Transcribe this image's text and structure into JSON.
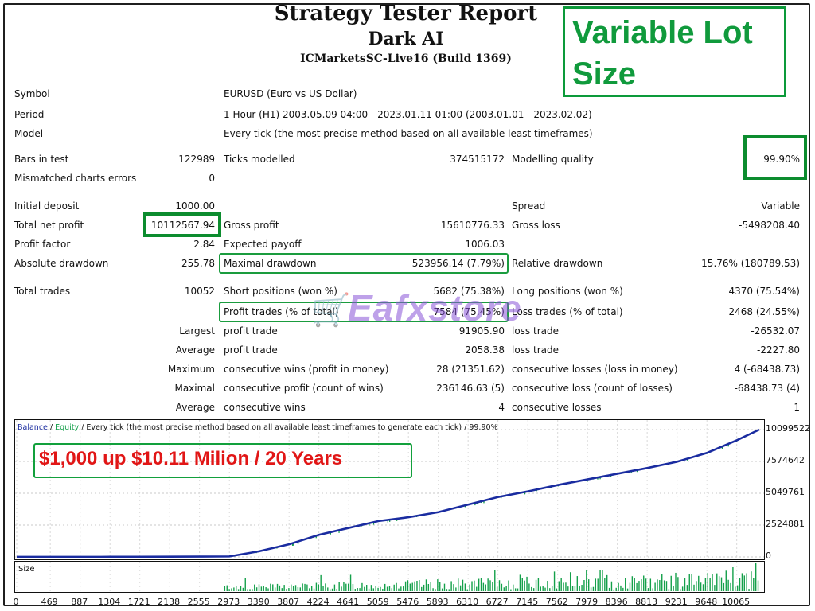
{
  "header": {
    "title": "Strategy Tester Report",
    "subtitle": "Dark AI",
    "server": "ICMarketsSC-Live16 (Build 1369)"
  },
  "badges": {
    "variable_lot": "Variable Lot Size",
    "growth": "$1,000 up $10.11 Milion / 20 Years"
  },
  "watermark": {
    "text": "Eafxstore"
  },
  "report": {
    "symbol_label": "Symbol",
    "symbol_value": "EURUSD (Euro vs US Dollar)",
    "period_label": "Period",
    "period_value": "1 Hour (H1) 2003.05.09 04:00 - 2023.01.11 01:00 (2003.01.01 - 2023.02.02)",
    "model_label": "Model",
    "model_value": "Every tick (the most precise method based on all available least timeframes)",
    "bars_label": "Bars in test",
    "bars_value": "122989",
    "ticks_label": "Ticks modelled",
    "ticks_value": "374515172",
    "quality_label": "Modelling quality",
    "quality_value": "99.90%",
    "mismatch_label": "Mismatched charts errors",
    "mismatch_value": "0",
    "deposit_label": "Initial deposit",
    "deposit_value": "1000.00",
    "spread_label": "Spread",
    "spread_value": "Variable",
    "net_label": "Total net profit",
    "net_value": "10112567.94",
    "gross_profit_label": "Gross profit",
    "gross_profit_value": "15610776.33",
    "gross_loss_label": "Gross loss",
    "gross_loss_value": "-5498208.40",
    "pf_label": "Profit factor",
    "pf_value": "2.84",
    "payoff_label": "Expected payoff",
    "payoff_value": "1006.03",
    "abs_dd_label": "Absolute drawdown",
    "abs_dd_value": "255.78",
    "max_dd_label": "Maximal drawdown",
    "max_dd_value": "523956.14 (7.79%)",
    "rel_dd_label": "Relative drawdown",
    "rel_dd_value": "15.76% (180789.53)",
    "trades_label": "Total trades",
    "trades_value": "10052",
    "short_label": "Short positions (won %)",
    "short_value": "5682 (75.38%)",
    "long_label": "Long positions (won %)",
    "long_value": "4370 (75.54%)",
    "profit_trades_label": "Profit trades (% of total)",
    "profit_trades_value": "7584 (75.45%)",
    "loss_trades_label": "Loss trades (% of total)",
    "loss_trades_value": "2468 (24.55%)",
    "largest_label": "Largest",
    "largest_pt_label": "profit trade",
    "largest_pt_value": "91905.90",
    "largest_lt_label": "loss trade",
    "largest_lt_value": "-26532.07",
    "average_label": "Average",
    "average_pt_label": "profit trade",
    "average_pt_value": "2058.38",
    "average_lt_label": "loss trade",
    "average_lt_value": "-2227.80",
    "maximum_label": "Maximum",
    "max_cw_label": "consecutive wins (profit in money)",
    "max_cw_value": "28 (21351.62)",
    "max_cl_label": "consecutive losses (loss in money)",
    "max_cl_value": "4 (-68438.73)",
    "maximal_label": "Maximal",
    "mx_cp_label": "consecutive profit (count of wins)",
    "mx_cp_value": "236146.63 (5)",
    "mx_cl_label": "consecutive loss (count of losses)",
    "mx_cl_value": "-68438.73 (4)",
    "avg2_label": "Average",
    "avg_cw_label": "consecutive wins",
    "avg_cw_value": "4",
    "avg_cl_label": "consecutive losses",
    "avg_cl_value": "1"
  },
  "legend": {
    "balance": "Balance",
    "sep1": " / ",
    "equity": "Equity",
    "rest": " / Every tick (the most precise method based on all available least timeframes to generate each tick) / 99.90%"
  },
  "colors": {
    "balance": "#1a2ca0",
    "equity": "#14a04a",
    "highlight": "#0c9a3a",
    "growth_text": "#e11616"
  },
  "chart_data": [
    {
      "type": "line",
      "xlabel": "",
      "ylabel": "",
      "ylim": [
        0,
        10099522
      ],
      "yticks": [
        "10099522",
        "7574642",
        "5049761",
        "2524881",
        "0"
      ],
      "x": [
        0,
        469,
        887,
        1304,
        1721,
        2138,
        2555,
        2973,
        3390,
        3807,
        4224,
        4641,
        5059,
        5476,
        5893,
        6310,
        6727,
        7145,
        7562,
        7979,
        8396,
        8813,
        9231,
        9648,
        10065,
        10380
      ],
      "series": [
        {
          "name": "Balance",
          "values": [
            1000,
            3000,
            6000,
            9000,
            13000,
            18000,
            25000,
            40000,
            450000,
            1000000,
            1750000,
            2300000,
            2850000,
            3150000,
            3550000,
            4150000,
            4750000,
            5200000,
            5700000,
            6150000,
            6600000,
            7050000,
            7550000,
            8250000,
            9250000,
            10100000
          ]
        }
      ],
      "grid": true,
      "legend": "top-left"
    },
    {
      "type": "bar",
      "title": "Size",
      "xticks": [
        "0",
        "469",
        "887",
        "1304",
        "1721",
        "2138",
        "2555",
        "2973",
        "3390",
        "3807",
        "4224",
        "4641",
        "5059",
        "5476",
        "5893",
        "6310",
        "6727",
        "7145",
        "7562",
        "7979",
        "8396",
        "8813",
        "9231",
        "9648",
        "10065"
      ],
      "xlim": [
        0,
        10380
      ]
    }
  ]
}
